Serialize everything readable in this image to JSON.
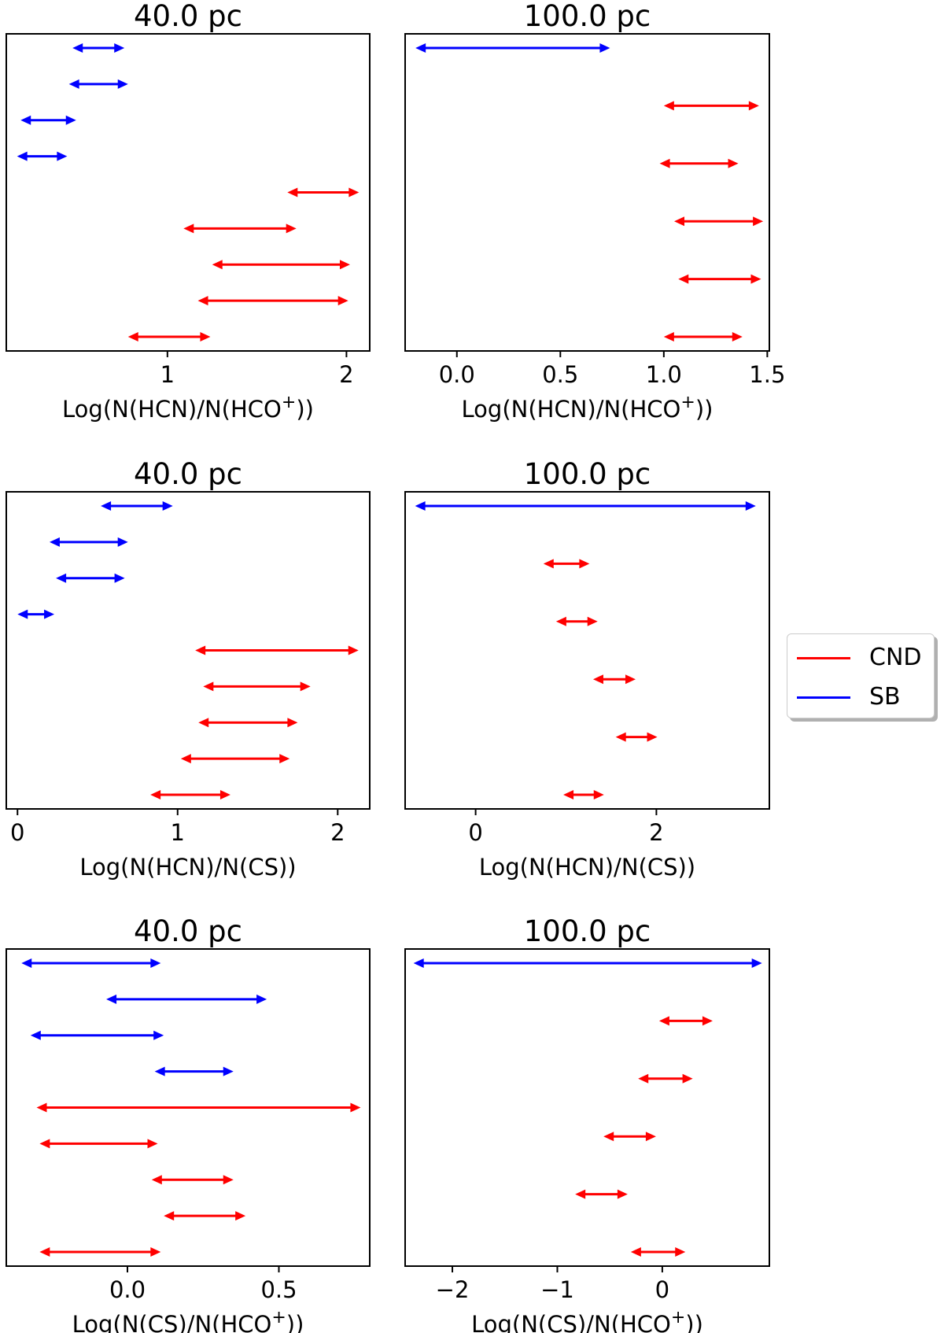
{
  "legend": {
    "items": [
      {
        "label": "CND",
        "color": "#ff0000"
      },
      {
        "label": "SB",
        "color": "#0000ff"
      }
    ]
  },
  "chart_data": [
    {
      "type": "range",
      "title": "40.0 pc",
      "xlabel": "Log(N(HCN)/N(HCO⁺))",
      "xlim": [
        0.1,
        2.13
      ],
      "xticks": [
        1,
        2
      ],
      "ranges": [
        {
          "series": "SB",
          "low": 0.47,
          "high": 0.76
        },
        {
          "series": "SB",
          "low": 0.45,
          "high": 0.78
        },
        {
          "series": "SB",
          "low": 0.18,
          "high": 0.49
        },
        {
          "series": "SB",
          "low": 0.16,
          "high": 0.44
        },
        {
          "series": "CND",
          "low": 1.67,
          "high": 2.07
        },
        {
          "series": "CND",
          "low": 1.09,
          "high": 1.72
        },
        {
          "series": "CND",
          "low": 1.25,
          "high": 2.02
        },
        {
          "series": "CND",
          "low": 1.17,
          "high": 2.01
        },
        {
          "series": "CND",
          "low": 0.78,
          "high": 1.24
        }
      ]
    },
    {
      "type": "range",
      "title": "100.0 pc",
      "xlabel": "Log(N(HCN)/N(HCO⁺))",
      "xlim": [
        -0.25,
        1.51
      ],
      "xticks": [
        0.0,
        0.5,
        1.0,
        1.5
      ],
      "xtick_labels": [
        "0.0",
        "0.5",
        "1.0",
        "1.5"
      ],
      "ranges": [
        {
          "series": "SB",
          "low": -0.2,
          "high": 0.74
        },
        {
          "series": "CND",
          "low": 1.0,
          "high": 1.46
        },
        {
          "series": "CND",
          "low": 0.98,
          "high": 1.36
        },
        {
          "series": "CND",
          "low": 1.05,
          "high": 1.48
        },
        {
          "series": "CND",
          "low": 1.07,
          "high": 1.47
        },
        {
          "series": "CND",
          "low": 1.0,
          "high": 1.38
        }
      ]
    },
    {
      "type": "range",
      "title": "40.0 pc",
      "xlabel": "Log(N(HCN)/N(CS))",
      "xlim": [
        -0.07,
        2.2
      ],
      "xticks": [
        0,
        1,
        2
      ],
      "ranges": [
        {
          "series": "SB",
          "low": 0.52,
          "high": 0.97
        },
        {
          "series": "SB",
          "low": 0.2,
          "high": 0.69
        },
        {
          "series": "SB",
          "low": 0.24,
          "high": 0.67
        },
        {
          "series": "SB",
          "low": 0.0,
          "high": 0.23
        },
        {
          "series": "CND",
          "low": 1.11,
          "high": 2.13
        },
        {
          "series": "CND",
          "low": 1.16,
          "high": 1.83
        },
        {
          "series": "CND",
          "low": 1.13,
          "high": 1.75
        },
        {
          "series": "CND",
          "low": 1.02,
          "high": 1.7
        },
        {
          "series": "CND",
          "low": 0.83,
          "high": 1.33
        }
      ]
    },
    {
      "type": "range",
      "title": "100.0 pc",
      "xlabel": "Log(N(HCN)/N(CS))",
      "xlim": [
        -0.78,
        3.25
      ],
      "xticks": [
        0,
        2
      ],
      "ranges": [
        {
          "series": "SB",
          "low": -0.67,
          "high": 3.1
        },
        {
          "series": "CND",
          "low": 0.75,
          "high": 1.26
        },
        {
          "series": "CND",
          "low": 0.89,
          "high": 1.35
        },
        {
          "series": "CND",
          "low": 1.3,
          "high": 1.77
        },
        {
          "series": "CND",
          "low": 1.55,
          "high": 2.01
        },
        {
          "series": "CND",
          "low": 0.97,
          "high": 1.42
        }
      ]
    },
    {
      "type": "range",
      "title": "40.0 pc",
      "xlabel": "Log(N(CS)/N(HCO⁺))",
      "xlim": [
        -0.4,
        0.8
      ],
      "xticks": [
        0.0,
        0.5
      ],
      "xtick_labels": [
        "0.0",
        "0.5"
      ],
      "ranges": [
        {
          "series": "SB",
          "low": -0.35,
          "high": 0.11
        },
        {
          "series": "SB",
          "low": -0.07,
          "high": 0.46
        },
        {
          "series": "SB",
          "low": -0.32,
          "high": 0.12
        },
        {
          "series": "SB",
          "low": 0.09,
          "high": 0.35
        },
        {
          "series": "CND",
          "low": -0.3,
          "high": 0.77
        },
        {
          "series": "CND",
          "low": -0.29,
          "high": 0.1
        },
        {
          "series": "CND",
          "low": 0.08,
          "high": 0.35
        },
        {
          "series": "CND",
          "low": 0.12,
          "high": 0.39
        },
        {
          "series": "CND",
          "low": -0.29,
          "high": 0.11
        }
      ]
    },
    {
      "type": "range",
      "title": "100.0 pc",
      "xlabel": "Log(N(CS)/N(HCO⁺))",
      "xlim": [
        -2.45,
        1.02
      ],
      "xticks": [
        -2,
        -1,
        0
      ],
      "xtick_labels": [
        "−2",
        "−1",
        "0"
      ],
      "ranges": [
        {
          "series": "SB",
          "low": -2.37,
          "high": 0.95
        },
        {
          "series": "CND",
          "low": -0.03,
          "high": 0.48
        },
        {
          "series": "CND",
          "low": -0.23,
          "high": 0.29
        },
        {
          "series": "CND",
          "low": -0.56,
          "high": -0.06
        },
        {
          "series": "CND",
          "low": -0.83,
          "high": -0.33
        },
        {
          "series": "CND",
          "low": -0.3,
          "high": 0.22
        }
      ]
    }
  ]
}
